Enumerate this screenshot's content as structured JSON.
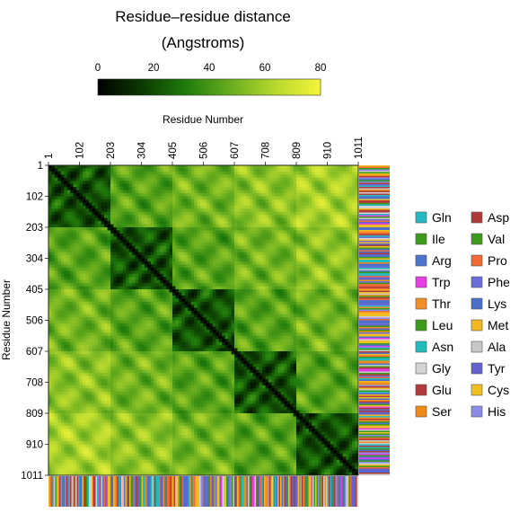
{
  "chart_data": {
    "type": "heatmap",
    "title_line1": "Residue–residue distance",
    "title_line2": "(Angstroms)",
    "xlabel": "Residue Number",
    "ylabel": "Residue Number",
    "colorbar": {
      "ticks": [
        "0",
        "20",
        "40",
        "60",
        "80"
      ],
      "range": [
        0,
        80
      ],
      "stops": [
        "#000000",
        "#0b3a00",
        "#217d0c",
        "#6aae1f",
        "#b8d92e",
        "#f5f53a"
      ]
    },
    "tick_labels": [
      "1",
      "102",
      "203",
      "304",
      "405",
      "506",
      "607",
      "708",
      "809",
      "910",
      "1011"
    ],
    "residue_range": [
      1,
      1011
    ],
    "domains": [
      [
        1,
        203
      ],
      [
        203,
        405
      ],
      [
        405,
        607
      ],
      [
        607,
        809
      ],
      [
        809,
        1011
      ]
    ],
    "legend": [
      {
        "name": "Gln",
        "color": "#26b9c3"
      },
      {
        "name": "Asp",
        "color": "#b03a3a"
      },
      {
        "name": "Ile",
        "color": "#3c9a1c"
      },
      {
        "name": "Val",
        "color": "#3c9a1c"
      },
      {
        "name": "Arg",
        "color": "#4c74cf"
      },
      {
        "name": "Pro",
        "color": "#ef6a35"
      },
      {
        "name": "Trp",
        "color": "#e43ee4"
      },
      {
        "name": "Phe",
        "color": "#6b6ddb"
      },
      {
        "name": "Thr",
        "color": "#f19024"
      },
      {
        "name": "Lys",
        "color": "#4a70cc"
      },
      {
        "name": "Leu",
        "color": "#3c9a1c"
      },
      {
        "name": "Met",
        "color": "#f4b820"
      },
      {
        "name": "Asn",
        "color": "#23bcbc"
      },
      {
        "name": "Ala",
        "color": "#c8c8c8"
      },
      {
        "name": "Gly",
        "color": "#d4d4d4"
      },
      {
        "name": "Tyr",
        "color": "#6362cf"
      },
      {
        "name": "Glu",
        "color": "#b23a3a"
      },
      {
        "name": "Cys",
        "color": "#f0c020"
      },
      {
        "name": "Ser",
        "color": "#f08a18"
      },
      {
        "name": "His",
        "color": "#8a8ce8"
      }
    ]
  }
}
